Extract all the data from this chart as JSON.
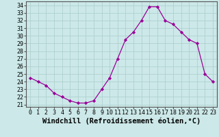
{
  "hours": [
    0,
    1,
    2,
    3,
    4,
    5,
    6,
    7,
    8,
    9,
    10,
    11,
    12,
    13,
    14,
    15,
    16,
    17,
    18,
    19,
    20,
    21,
    22,
    23
  ],
  "values": [
    24.5,
    24.0,
    23.5,
    22.5,
    22.0,
    21.5,
    21.2,
    21.2,
    21.5,
    23.0,
    24.5,
    27.0,
    29.5,
    30.5,
    32.0,
    33.8,
    33.8,
    32.0,
    31.5,
    30.5,
    29.5,
    29.0,
    25.0,
    24.0
  ],
  "line_color": "#990099",
  "marker": "D",
  "marker_size": 2.2,
  "bg_color": "#cce8e8",
  "grid_color": "#aacccc",
  "xlabel": "Windchill (Refroidissement éolien,°C)",
  "xlabel_fontsize": 7.5,
  "ylabel_ticks": [
    21,
    22,
    23,
    24,
    25,
    26,
    27,
    28,
    29,
    30,
    31,
    32,
    33,
    34
  ],
  "xlim": [
    -0.5,
    23.5
  ],
  "ylim": [
    20.7,
    34.5
  ],
  "tick_fontsize": 6.0,
  "spine_color": "#555555"
}
